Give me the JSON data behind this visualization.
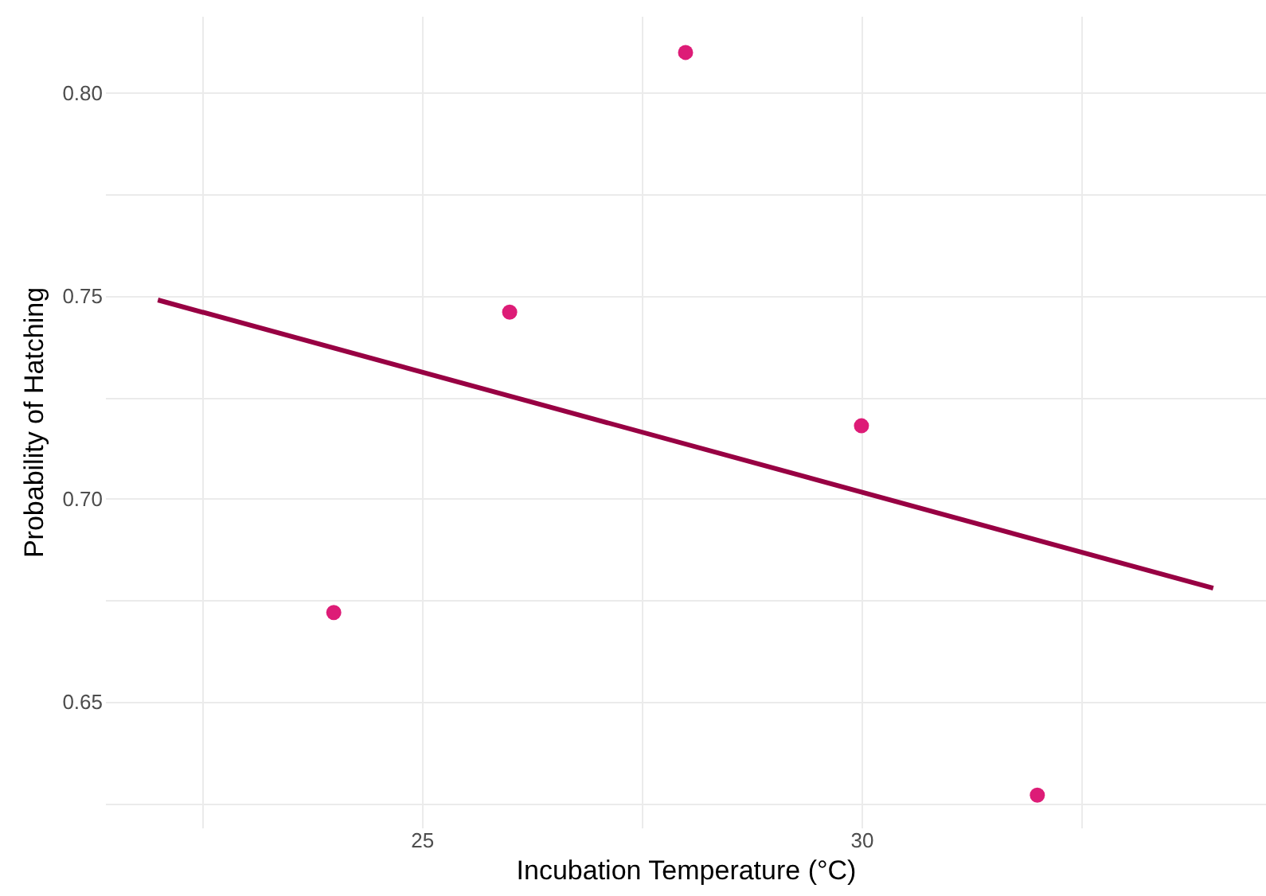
{
  "chart_data": {
    "type": "scatter",
    "xlabel": "Incubation Temperature (°C)",
    "ylabel": "Probability of Hatching",
    "xlim": [
      21.4,
      34.6
    ],
    "ylim": [
      0.619,
      0.819
    ],
    "xticks": [
      {
        "value": 22.5,
        "label": null
      },
      25,
      {
        "value": 27.5,
        "label": null
      },
      30,
      {
        "value": 32.5,
        "label": null
      }
    ],
    "yticks": [
      {
        "value": 0.625,
        "label": null
      },
      {
        "value": 0.65,
        "label": "0.65"
      },
      {
        "value": 0.675,
        "label": null
      },
      {
        "value": 0.7,
        "label": "0.70"
      },
      {
        "value": 0.725,
        "label": null
      },
      {
        "value": 0.75,
        "label": "0.75"
      },
      {
        "value": 0.775,
        "label": null
      },
      {
        "value": 0.8,
        "label": "0.80"
      }
    ],
    "grid": true,
    "marker": "circle",
    "line_style": "solid",
    "series": [
      {
        "color": "#dd1c77",
        "x": [
          24,
          26,
          28,
          30,
          32
        ],
        "values": [
          0.672,
          0.746,
          0.81,
          0.718,
          0.627
        ]
      },
      {
        "type": "line",
        "marker": "none",
        "color": "#980043",
        "x": [
          22,
          34
        ],
        "values": [
          0.749,
          0.678
        ]
      }
    ]
  }
}
